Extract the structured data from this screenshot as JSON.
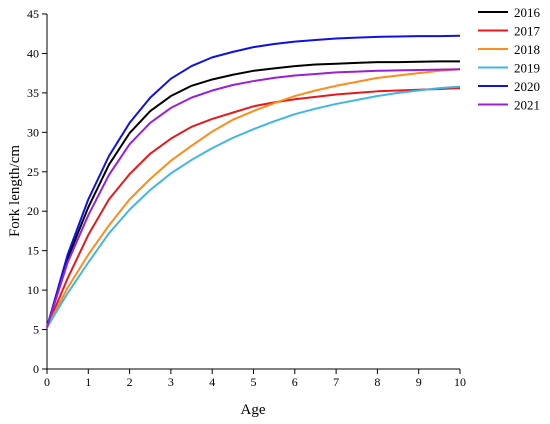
{
  "chart_data": {
    "type": "line",
    "xlabel": "Age",
    "ylabel": "Fork length/cm",
    "xlim": [
      0,
      10
    ],
    "ylim": [
      0,
      45
    ],
    "xticks": [
      "0",
      "1",
      "2",
      "3",
      "4",
      "5",
      "6",
      "7",
      "8",
      "9",
      "10"
    ],
    "yticks": [
      "0",
      "5",
      "10",
      "15",
      "20",
      "25",
      "30",
      "35",
      "40",
      "45"
    ],
    "x": [
      0,
      0.5,
      1,
      1.5,
      2,
      2.5,
      3,
      3.5,
      4,
      4.5,
      5,
      5.5,
      6,
      6.5,
      7,
      7.5,
      8,
      8.5,
      9,
      9.5,
      10
    ],
    "legend_position": "top-right",
    "series": [
      {
        "name": "2016",
        "color": "#000000",
        "values": [
          5.3,
          14.0,
          20.5,
          25.9,
          29.9,
          32.7,
          34.6,
          35.9,
          36.7,
          37.3,
          37.8,
          38.1,
          38.4,
          38.6,
          38.7,
          38.8,
          38.9,
          38.9,
          38.95,
          39.0,
          39.0
        ]
      },
      {
        "name": "2017",
        "color": "#e41a1c",
        "values": [
          5.3,
          11.5,
          17.0,
          21.5,
          24.7,
          27.3,
          29.2,
          30.7,
          31.7,
          32.5,
          33.3,
          33.8,
          34.2,
          34.5,
          34.8,
          35.0,
          35.2,
          35.3,
          35.4,
          35.5,
          35.6
        ]
      },
      {
        "name": "2018",
        "color": "#ff8c1a",
        "values": [
          5.3,
          10.3,
          14.5,
          18.2,
          21.5,
          24.1,
          26.4,
          28.3,
          30.1,
          31.6,
          32.7,
          33.7,
          34.6,
          35.3,
          35.9,
          36.4,
          36.9,
          37.2,
          37.5,
          37.8,
          38.0
        ]
      },
      {
        "name": "2019",
        "color": "#41b6e6",
        "values": [
          5.3,
          9.6,
          13.5,
          17.2,
          20.2,
          22.7,
          24.8,
          26.5,
          28.0,
          29.3,
          30.4,
          31.4,
          32.3,
          33.0,
          33.6,
          34.1,
          34.6,
          35.0,
          35.3,
          35.6,
          35.8
        ]
      },
      {
        "name": "2020",
        "color": "#1010e0",
        "values": [
          5.3,
          14.5,
          21.5,
          27.0,
          31.2,
          34.4,
          36.8,
          38.4,
          39.5,
          40.2,
          40.8,
          41.2,
          41.5,
          41.7,
          41.9,
          42.0,
          42.1,
          42.15,
          42.2,
          42.2,
          42.25
        ]
      },
      {
        "name": "2021",
        "color": "#9a1fd6",
        "values": [
          5.3,
          13.5,
          19.5,
          24.6,
          28.5,
          31.2,
          33.1,
          34.4,
          35.3,
          36.0,
          36.5,
          36.9,
          37.2,
          37.4,
          37.6,
          37.7,
          37.8,
          37.85,
          37.9,
          37.95,
          38.0
        ]
      }
    ]
  }
}
